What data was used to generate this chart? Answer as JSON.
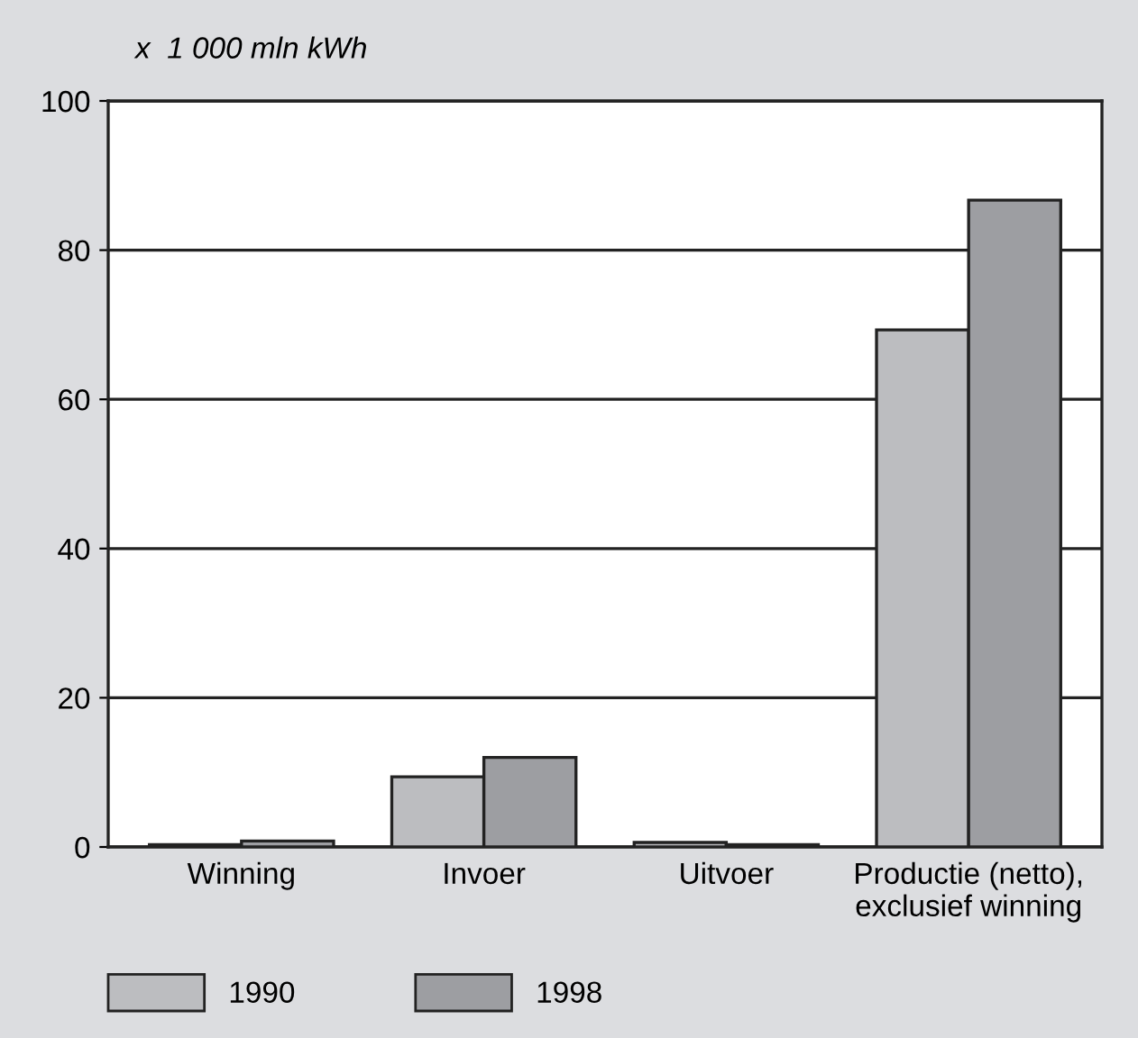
{
  "chart_data": {
    "type": "bar",
    "ylabel": "x  1 000 mln kWh",
    "categories": [
      "Winning",
      "Invoer",
      "Uitvoer",
      "Productie (netto),\nexclusief winning"
    ],
    "series": [
      {
        "name": "1990",
        "color": "#bcbdc0",
        "values": [
          0.3,
          9.4,
          0.6,
          69.3
        ]
      },
      {
        "name": "1998",
        "color": "#9d9ea2",
        "values": [
          0.8,
          12.0,
          0.3,
          86.7
        ]
      }
    ],
    "ylim": [
      0,
      100
    ],
    "yticks": [
      0,
      20,
      40,
      60,
      80,
      100
    ],
    "grid": "y",
    "legend": "bottom left"
  }
}
